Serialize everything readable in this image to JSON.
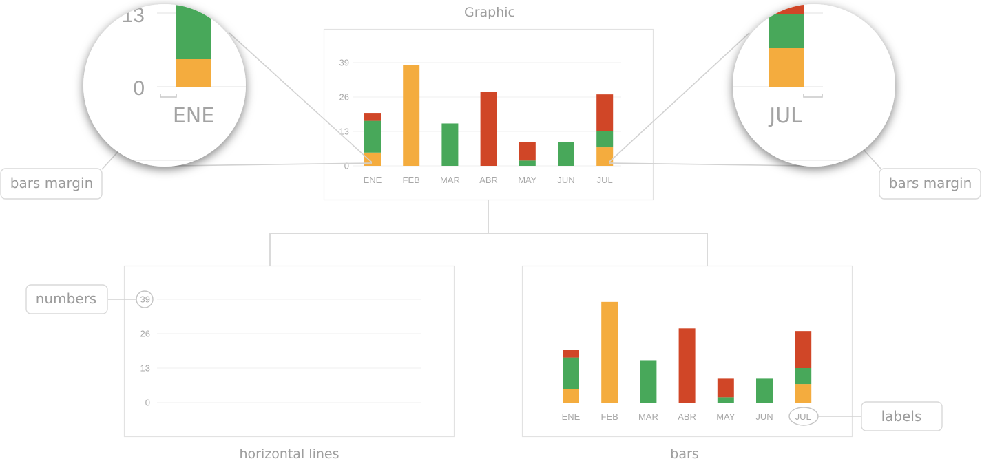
{
  "title": "Graphic",
  "callouts": {
    "bars_margin_left": "bars margin",
    "bars_margin_right": "bars margin",
    "numbers": "numbers",
    "labels": "labels"
  },
  "captions": {
    "lines": "horizontal lines",
    "bars": "bars"
  },
  "magnifier_left": {
    "tick_top": "13",
    "tick_zero": "0",
    "category": "ENE"
  },
  "magnifier_right": {
    "category": "JUL"
  },
  "colors": {
    "orange": "#F4AC3E",
    "green": "#48A85A",
    "red": "#D04627"
  },
  "chart_data": {
    "type": "bar",
    "stacked": true,
    "title": "Graphic",
    "categories": [
      "ENE",
      "FEB",
      "MAR",
      "ABR",
      "MAY",
      "JUN",
      "JUL"
    ],
    "yticks": [
      "0",
      "13",
      "26",
      "39"
    ],
    "ylim": [
      0,
      39
    ],
    "grid": true,
    "series": [
      {
        "color": "#F4AC3E",
        "values": [
          5,
          38,
          0,
          0,
          0,
          0,
          7
        ]
      },
      {
        "color": "#48A85A",
        "values": [
          12,
          0,
          16,
          0,
          2,
          9,
          6
        ]
      },
      {
        "color": "#D04627",
        "values": [
          3,
          0,
          0,
          28,
          7,
          0,
          14
        ]
      }
    ]
  }
}
